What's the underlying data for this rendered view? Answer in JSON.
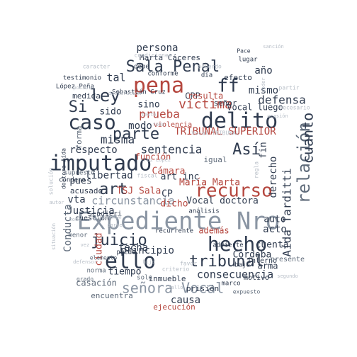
{
  "colors": {
    "navy": "#2f3b4f",
    "slate": "#5f6b7a",
    "gray": "#8a95a3",
    "light": "#b7bec7",
    "red": "#b5473f"
  },
  "words": [
    {
      "text": "Expediente Nro",
      "color": "gray"
    },
    {
      "text": "imputado",
      "color": "navy"
    },
    {
      "text": "hecho",
      "color": "navy"
    },
    {
      "text": "pena",
      "color": "red"
    },
    {
      "text": "delito",
      "color": "navy"
    },
    {
      "text": "caso",
      "color": "navy"
    },
    {
      "text": "recurso",
      "color": "red"
    },
    {
      "text": "Sala Penal",
      "color": "navy"
    },
    {
      "text": "ello",
      "color": "navy"
    },
    {
      "text": "tribunal",
      "color": "navy"
    },
    {
      "text": "juicio",
      "color": "navy"
    },
    {
      "text": "relación",
      "color": "slate"
    },
    {
      "text": "señora Vocal",
      "color": "gray"
    },
    {
      "text": "parte",
      "color": "navy"
    },
    {
      "text": "art",
      "color": "navy"
    },
    {
      "text": "víctima",
      "color": "red"
    },
    {
      "text": "ley",
      "color": "navy"
    },
    {
      "text": "ff",
      "color": "navy"
    },
    {
      "text": "Así",
      "color": "navy"
    },
    {
      "text": "cuanto",
      "color": "navy"
    },
    {
      "text": "Si",
      "color": "navy"
    },
    {
      "text": "TRIBUNAL SUPERIOR",
      "color": "red"
    },
    {
      "text": "sentencia",
      "color": "navy"
    },
    {
      "text": "misma",
      "color": "navy"
    },
    {
      "text": "respecto",
      "color": "navy"
    },
    {
      "text": "circunstancia",
      "color": "gray"
    },
    {
      "text": "consecuencia",
      "color": "navy"
    },
    {
      "text": "defensa",
      "color": "navy"
    },
    {
      "text": "prueba",
      "color": "red"
    },
    {
      "text": "Cámara",
      "color": "red"
    },
    {
      "text": "dicho",
      "color": "red"
    },
    {
      "text": "fecha",
      "color": "navy"
    },
    {
      "text": "causa",
      "color": "navy"
    },
    {
      "text": "principio",
      "color": "navy"
    },
    {
      "text": "mismo",
      "color": "navy"
    },
    {
      "text": "persona",
      "color": "navy"
    },
    {
      "text": "año",
      "color": "navy"
    },
    {
      "text": "tal",
      "color": "navy"
    },
    {
      "text": "modo",
      "color": "navy"
    },
    {
      "text": "sido",
      "color": "navy"
    },
    {
      "text": "sino",
      "color": "navy"
    },
    {
      "text": "CPP",
      "color": "navy"
    },
    {
      "text": "resulta",
      "color": "red"
    },
    {
      "text": "libertad",
      "color": "navy"
    },
    {
      "text": "pues",
      "color": "navy"
    },
    {
      "text": "Justicia",
      "color": "navy"
    },
    {
      "text": "Conducta",
      "color": "slate"
    },
    {
      "text": "vta",
      "color": "navy"
    },
    {
      "text": "Vocal doctora",
      "color": "navy"
    },
    {
      "text": "María Marta",
      "color": "red"
    },
    {
      "text": "Aída Tarditti",
      "color": "navy"
    },
    {
      "text": "derecho",
      "color": "navy"
    },
    {
      "text": "fin",
      "color": "navy"
    },
    {
      "text": "acto",
      "color": "navy"
    },
    {
      "text": "auto",
      "color": "navy"
    },
    {
      "text": "cuenta",
      "color": "navy"
    },
    {
      "text": "Córdoba",
      "color": "navy"
    },
    {
      "text": "además",
      "color": "red"
    },
    {
      "text": "ciudad",
      "color": "red"
    },
    {
      "text": "arma",
      "color": "navy"
    },
    {
      "text": "tiempo",
      "color": "navy"
    },
    {
      "text": "casación",
      "color": "slate"
    },
    {
      "text": "inmueble",
      "color": "navy"
    },
    {
      "text": "prisión",
      "color": "navy"
    },
    {
      "text": "ejecución",
      "color": "red"
    },
    {
      "text": "encuentra",
      "color": "slate"
    },
    {
      "text": "TSJ Sala",
      "color": "red"
    },
    {
      "text": "art inc",
      "color": "navy"
    },
    {
      "text": "CP",
      "color": "navy"
    },
    {
      "text": "medida",
      "color": "navy"
    },
    {
      "text": "función",
      "color": "red"
    },
    {
      "text": "Marta Cáceres",
      "color": "navy"
    },
    {
      "text": "Vocal luego",
      "color": "navy"
    },
    {
      "text": "señor",
      "color": "navy"
    },
    {
      "text": "efecto",
      "color": "navy"
    },
    {
      "text": "igual",
      "color": "slate"
    },
    {
      "text": "forma",
      "color": "slate"
    },
    {
      "text": "acusado",
      "color": "navy"
    },
    {
      "text": "motivo",
      "color": "navy"
    },
    {
      "text": "interno",
      "color": "navy"
    },
    {
      "text": "presente",
      "color": "slate"
    },
    {
      "text": "Sebastián Cruz",
      "color": "navy"
    },
    {
      "text": "López Peña",
      "color": "navy"
    },
    {
      "text": "análisis",
      "color": "navy"
    },
    {
      "text": "recurrente",
      "color": "navy"
    },
    {
      "text": "Scudieri",
      "color": "navy"
    },
    {
      "text": "violencia",
      "color": "red"
    },
    {
      "text": "cuestión",
      "color": "navy"
    },
    {
      "text": "marco",
      "color": "navy"
    },
    {
      "text": "bajo",
      "color": "navy"
    },
    {
      "text": "puede",
      "color": "navy"
    },
    {
      "text": "advierte",
      "color": "navy"
    },
    {
      "text": "menor",
      "color": "slate"
    },
    {
      "text": "condena",
      "color": "navy"
    },
    {
      "text": "conforme",
      "color": "navy"
    },
    {
      "text": "supuesto",
      "color": "slate"
    },
    {
      "text": "doctora Aída",
      "color": "navy"
    },
    {
      "text": "Pace",
      "color": "navy"
    },
    {
      "text": "lugar",
      "color": "navy"
    },
    {
      "text": "testimonio",
      "color": "navy"
    },
    {
      "text": "debe",
      "color": "navy"
    },
    {
      "text": "día",
      "color": "navy"
    },
    {
      "text": "solo",
      "color": "slate"
    },
    {
      "text": "norma",
      "color": "slate"
    },
    {
      "text": "grado",
      "color": "slate"
    },
    {
      "text": "expuesto",
      "color": "slate"
    },
    {
      "text": "elemento",
      "color": "slate"
    },
    {
      "text": "Vocal TRIBUNAL",
      "color": "light"
    },
    {
      "text": "siguiente",
      "color": "light"
    },
    {
      "text": "condiciones",
      "color": "light"
    },
    {
      "text": "acuerdo",
      "color": "light"
    },
    {
      "text": "favor",
      "color": "light"
    },
    {
      "text": "caracter",
      "color": "light"
    },
    {
      "text": "partir",
      "color": "light"
    },
    {
      "text": "necesario",
      "color": "light"
    },
    {
      "text": "criterio",
      "color": "light"
    },
    {
      "text": "regla",
      "color": "light"
    },
    {
      "text": "solución",
      "color": "light"
    },
    {
      "text": "fiscal",
      "color": "light"
    },
    {
      "text": "autor",
      "color": "light"
    },
    {
      "text": "posible",
      "color": "light"
    },
    {
      "text": "sanción",
      "color": "light"
    },
    {
      "text": "toda",
      "color": "light"
    },
    {
      "text": "vez",
      "color": "light"
    },
    {
      "text": "parte",
      "color": "light"
    },
    {
      "text": "modo",
      "color": "light"
    },
    {
      "text": "texto",
      "color": "light"
    },
    {
      "text": "fallo",
      "color": "light"
    },
    {
      "text": "situación",
      "color": "light"
    },
    {
      "text": "declaración",
      "color": "light"
    },
    {
      "text": "Cruz López",
      "color": "light"
    },
    {
      "text": "poder",
      "color": "light"
    },
    {
      "text": "segundo",
      "color": "light"
    },
    {
      "text": "hijo",
      "color": "light"
    },
    {
      "text": "defensor",
      "color": "light"
    },
    {
      "text": "ocasión",
      "color": "light"
    },
    {
      "text": "manera",
      "color": "light"
    },
    {
      "text": "nulidad",
      "color": "light"
    }
  ]
}
